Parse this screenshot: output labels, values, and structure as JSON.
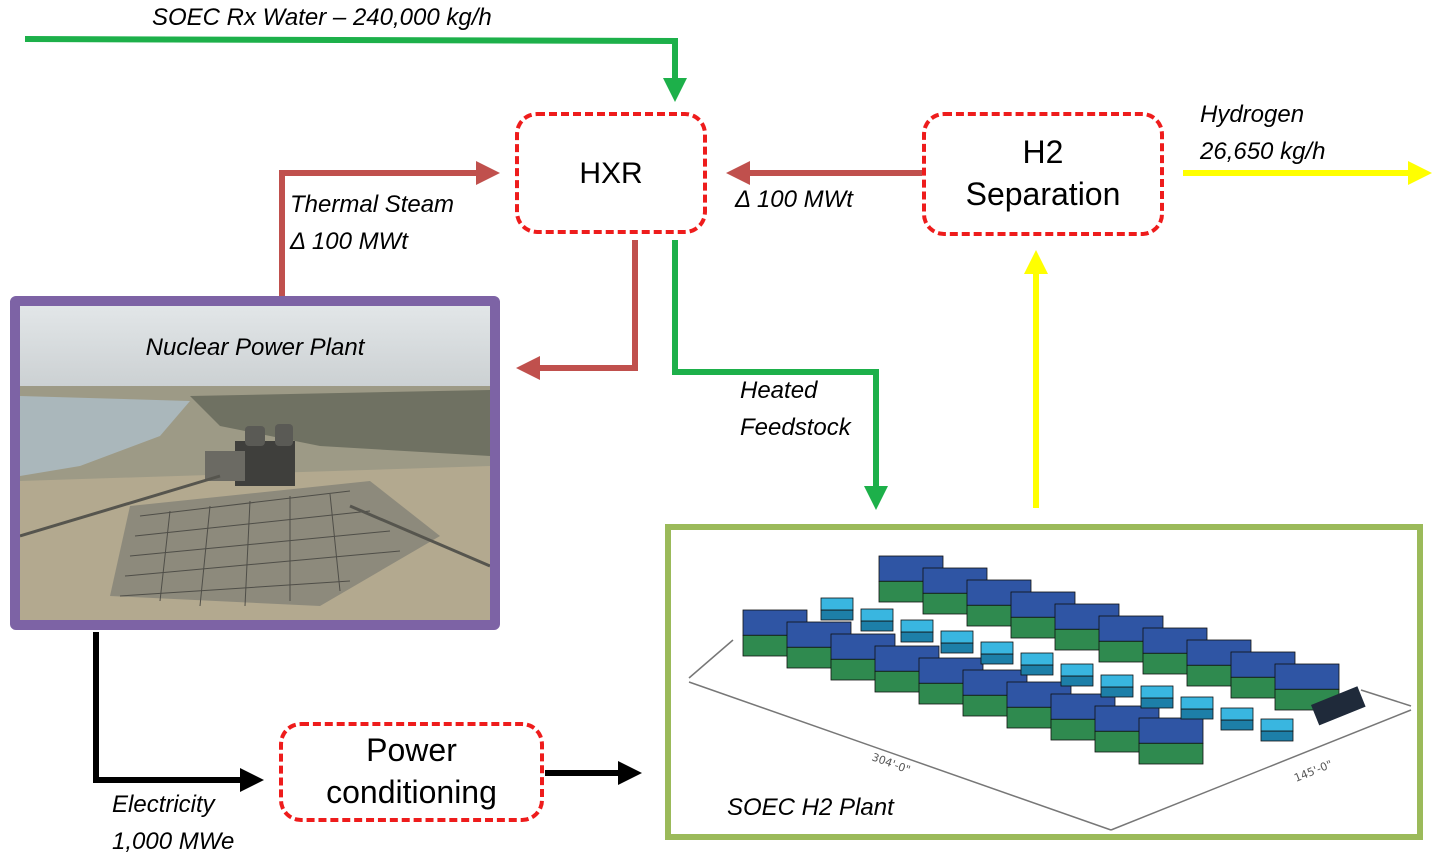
{
  "labels": {
    "soec_water": "SOEC Rx Water – 240,000 kg/h",
    "thermal_steam": "Thermal Steam\nΔ 100 MWt",
    "delta_mwt": "Δ 100 MWt",
    "hydrogen": "Hydrogen\n26,650 kg/h",
    "heated_feedstock": "Heated\nFeedstock",
    "electricity": "Electricity\n1,000 MWe"
  },
  "nodes": {
    "hxr": "HXR",
    "h2_separation": "H2\nSeparation",
    "power_conditioning": "Power\nconditioning"
  },
  "panels": {
    "nuclear_plant_title": "Nuclear Power Plant",
    "soec_plant_title": "SOEC H2 Plant",
    "dim_length": "304'-0\"",
    "dim_width": "145'-0\""
  },
  "colors": {
    "water_flow": "#1db04a",
    "heat_flow": "#c0504d",
    "hydrogen_flow": "#ffff00",
    "electric_flow": "#000000",
    "node_border": "#ee1c1c",
    "nuclear_border": "#7d63a5",
    "soec_border": "#9bba5a"
  }
}
